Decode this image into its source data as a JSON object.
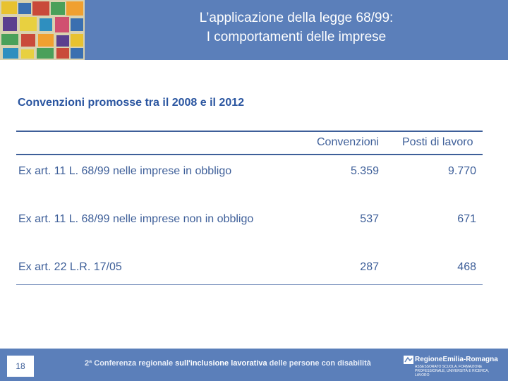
{
  "header": {
    "title_line1": "L’applicazione della legge 68/99:",
    "title_line2": "I comportamenti delle imprese"
  },
  "section": {
    "title": "Convenzioni promosse tra il 2008 e il 2012"
  },
  "table": {
    "columns": [
      "Convenzioni",
      "Posti di lavoro"
    ],
    "rows": [
      {
        "label": "Ex art. 11 L. 68/99 nelle imprese in obbligo",
        "convenzioni": "5.359",
        "posti": "9.770"
      },
      {
        "label": "Ex art. 11 L. 68/99 nelle imprese non in obbligo",
        "convenzioni": "537",
        "posti": "671"
      },
      {
        "label": "Ex art. 22 L.R. 17/05",
        "convenzioni": "287",
        "posti": "468"
      }
    ]
  },
  "footer": {
    "page_number": "18",
    "conference_part1": "2ª Conferenza regionale ",
    "conference_part2": "sull'inclusione lavorativa",
    "conference_part3": " delle persone con disabilità",
    "region_name": "RegioneEmilia-Romagna",
    "region_sub": "ASSESSORATO SCUOLA, FORMAZIONE PROFESSIONALE, UNIVERSITÀ E RICERCA, LAVORO"
  },
  "colors": {
    "header_bg": "#5b7fba",
    "text_blue": "#3e5f99",
    "title_blue": "#2a55a0"
  }
}
